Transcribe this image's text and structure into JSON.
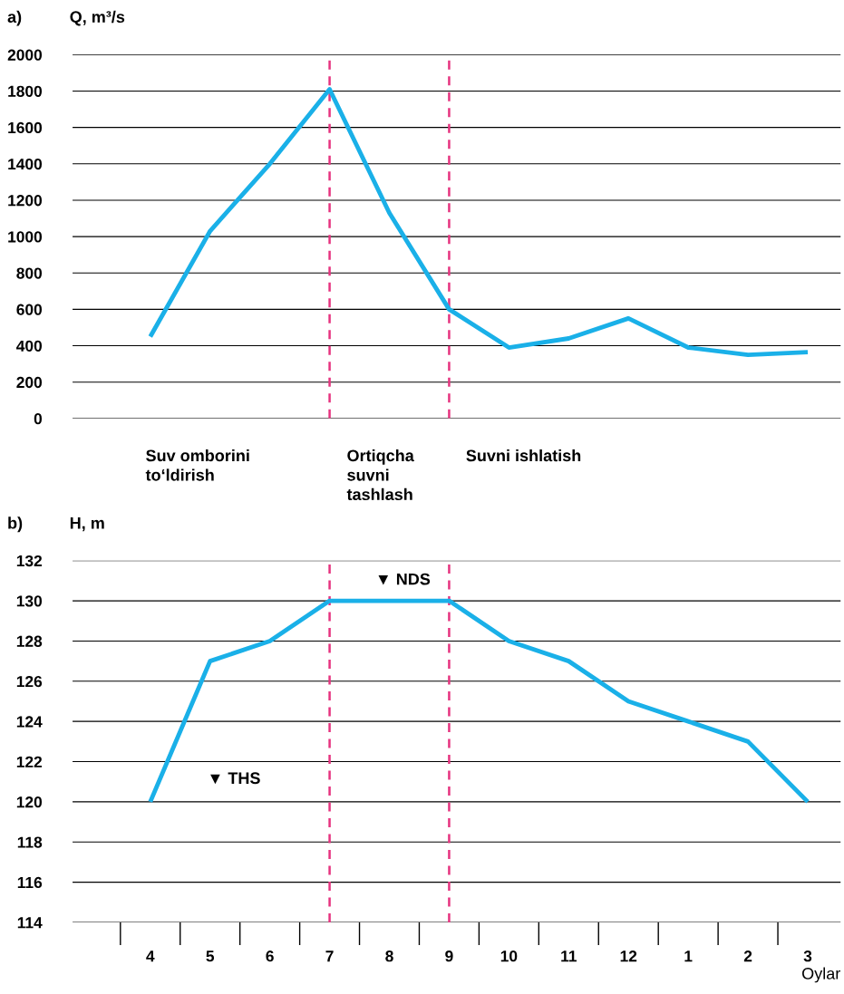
{
  "chart_data": [
    {
      "type": "line",
      "title": "a)",
      "ylabel": "Q, m³/s",
      "categories": [
        "4",
        "5",
        "6",
        "7",
        "8",
        "9",
        "10",
        "11",
        "12",
        "1",
        "2",
        "3"
      ],
      "series": [
        {
          "color": "#1ab0e8",
          "values": [
            450,
            1030,
            1400,
            1810,
            1130,
            600,
            390,
            440,
            550,
            390,
            350,
            365
          ]
        }
      ],
      "ylim": [
        0,
        2000
      ],
      "yticks": [
        0,
        200,
        400,
        600,
        800,
        1000,
        1200,
        1400,
        1600,
        1800,
        2000
      ],
      "grid": "y",
      "tick_labels": "y",
      "ref_lines": [
        {
          "axis": "x",
          "value": "7",
          "color": "#e6337f",
          "line_style": "dashed"
        },
        {
          "axis": "x",
          "value": "9",
          "color": "#e6337f",
          "line_style": "dashed"
        }
      ],
      "annotations": [
        "Suv omborini\nto‘ldirish",
        "Ortiqcha\nsuvni\ntashlash",
        "Suvni ishlatish"
      ]
    },
    {
      "type": "line",
      "title": "b)",
      "ylabel": "H, m",
      "xlabel": "Oylar",
      "categories": [
        "4",
        "5",
        "6",
        "7",
        "8",
        "9",
        "10",
        "11",
        "12",
        "1",
        "2",
        "3"
      ],
      "series": [
        {
          "color": "#1ab0e8",
          "values": [
            120,
            127,
            128,
            130,
            130,
            130,
            128,
            127,
            125,
            124,
            123,
            120
          ]
        }
      ],
      "ylim": [
        114,
        132
      ],
      "yticks": [
        114,
        116,
        118,
        120,
        122,
        124,
        126,
        128,
        130,
        132
      ],
      "grid": "y",
      "ref_lines": [
        {
          "axis": "x",
          "value": "7",
          "color": "#e6337f",
          "line_style": "dashed"
        },
        {
          "axis": "x",
          "value": "9",
          "color": "#e6337f",
          "line_style": "dashed"
        }
      ],
      "annotations": [
        "▼ NDS",
        "▼ THS"
      ]
    }
  ]
}
